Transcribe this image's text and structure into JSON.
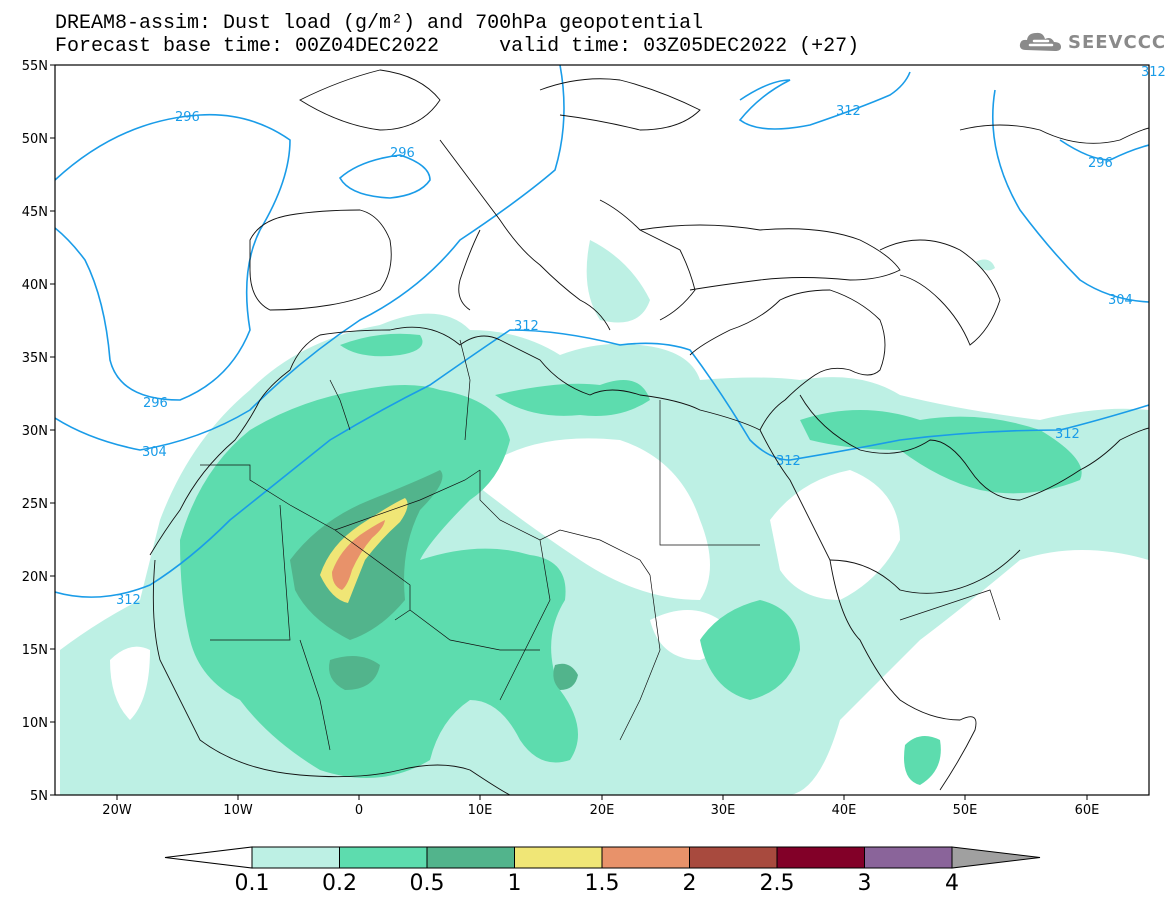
{
  "title": {
    "line1": "DREAM8-assim: Dust load (g/m²) and 700hPa geopotential",
    "base_time_label": "Forecast base time: 00Z04DEC2022",
    "valid_time_label": "valid time: 03Z05DEC2022 (+27)"
  },
  "logo": {
    "text": "SEEVCCC",
    "icon": "cloud-icon"
  },
  "map": {
    "lon_ticks": [
      "20W",
      "10W",
      "0",
      "10E",
      "20E",
      "30E",
      "40E",
      "50E",
      "60E"
    ],
    "lat_ticks": [
      "55N",
      "50N",
      "45N",
      "40N",
      "35N",
      "30N",
      "25N",
      "20N",
      "15N",
      "10N",
      "5N"
    ],
    "contour_labels": [
      "296",
      "296",
      "296",
      "296",
      "304",
      "304",
      "312",
      "312",
      "312",
      "312",
      "312",
      "312"
    ]
  },
  "colorbar": {
    "labels": [
      "0.1",
      "0.2",
      "0.5",
      "1",
      "1.5",
      "2",
      "2.5",
      "3",
      "4"
    ],
    "colors": [
      "#bdf0e4",
      "#5ddcae",
      "#52b48c",
      "#f0e676",
      "#e8926a",
      "#a84a3e",
      "#820028",
      "#8a649a",
      "#a0a0a0"
    ]
  },
  "dust_colors": {
    "light": "#bdf0e4",
    "medium": "#5ddcae",
    "dark": "#52b48c",
    "yellow": "#f0e676",
    "orange": "#e8926a"
  },
  "contour_color": "#1a9ce8"
}
